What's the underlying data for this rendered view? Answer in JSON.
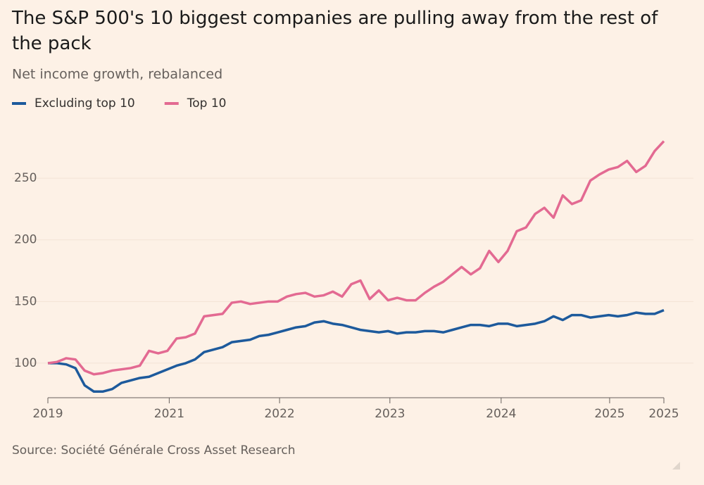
{
  "chart_data": {
    "type": "line",
    "title": "The S&P 500's 10 biggest companies are pulling away from the rest of the pack",
    "subtitle": "Net income growth, rebalanced",
    "source": "Source: Société Générale Cross Asset Research",
    "x": [
      0,
      1,
      2,
      3,
      4,
      5,
      6,
      7,
      8,
      9,
      10,
      11,
      12,
      13,
      14,
      15,
      16,
      17,
      18,
      19,
      20,
      21,
      22,
      23,
      24,
      25,
      26,
      27,
      28,
      29,
      30,
      31,
      32,
      33,
      34,
      35,
      36,
      37,
      38,
      39,
      40,
      41,
      42,
      43,
      44,
      45,
      46,
      47,
      48,
      49,
      50,
      51,
      52,
      53,
      54,
      55,
      56,
      57,
      58,
      59,
      60,
      61,
      62,
      63,
      64,
      65,
      66,
      67
    ],
    "series": [
      {
        "name": "Excluding top 10",
        "color": "#1d5a9c",
        "values": [
          100,
          100,
          99,
          96,
          82,
          77,
          77,
          79,
          84,
          86,
          88,
          89,
          92,
          95,
          98,
          100,
          103,
          109,
          111,
          113,
          117,
          118,
          119,
          122,
          123,
          125,
          127,
          129,
          130,
          133,
          134,
          132,
          131,
          129,
          127,
          126,
          125,
          126,
          124,
          125,
          125,
          126,
          126,
          125,
          127,
          129,
          131,
          131,
          130,
          132,
          132,
          130,
          131,
          132,
          134,
          138,
          135,
          139,
          139,
          137,
          138,
          139,
          138,
          139,
          141,
          140,
          140,
          143
        ]
      },
      {
        "name": "Top 10",
        "color": "#e36a92",
        "values": [
          100,
          101,
          104,
          103,
          94,
          91,
          92,
          94,
          95,
          96,
          98,
          110,
          108,
          110,
          120,
          121,
          124,
          138,
          139,
          140,
          149,
          150,
          148,
          149,
          150,
          150,
          154,
          156,
          157,
          154,
          155,
          158,
          154,
          164,
          167,
          152,
          159,
          151,
          153,
          151,
          151,
          157,
          162,
          166,
          172,
          178,
          172,
          177,
          191,
          182,
          191,
          207,
          210,
          221,
          226,
          218,
          236,
          229,
          232,
          248,
          253,
          257,
          259,
          264,
          255,
          260,
          272,
          280
        ]
      }
    ],
    "xlim": [
      0,
      67
    ],
    "xticks": [
      {
        "value": 0,
        "label": "2019"
      },
      {
        "value": 13.2,
        "label": "2021"
      },
      {
        "value": 25.2,
        "label": "2022"
      },
      {
        "value": 37.2,
        "label": "2023"
      },
      {
        "value": 49.3,
        "label": "2024"
      },
      {
        "value": 61.1,
        "label": "2025"
      },
      {
        "value": 67,
        "label": "2025"
      }
    ],
    "ylim": [
      72,
      290
    ],
    "yticks": [
      100,
      150,
      200,
      250
    ],
    "grid": true
  }
}
